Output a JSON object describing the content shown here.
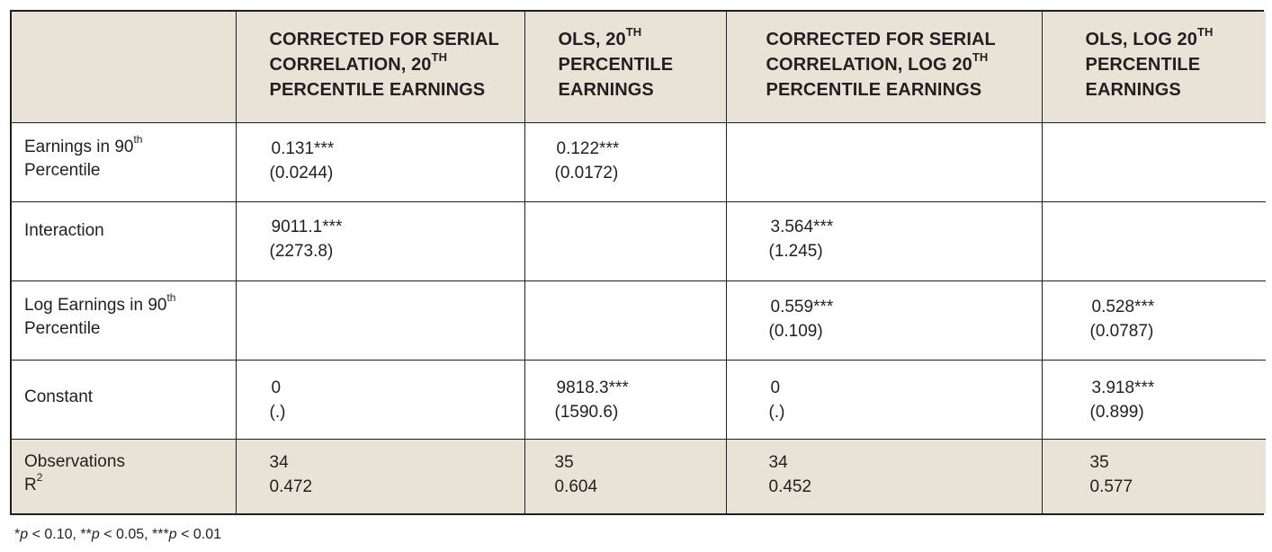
{
  "table": {
    "headers": [
      {
        "text": "",
        "sup": "",
        "after": ""
      },
      {
        "text": "Corrected for Serial Correlation, 20",
        "sup": "th",
        "after": " Percentile Earnings"
      },
      {
        "text": "OLS, 20",
        "sup": "th",
        "after": " Percentile Earnings"
      },
      {
        "text": "Corrected for Serial Correlation, Log 20",
        "sup": "th",
        "after": " Percentile Earnings"
      },
      {
        "text": "OLS, Log 20",
        "sup": "th",
        "after": " Percentile Earnings"
      }
    ],
    "rows": [
      {
        "label_pre": "Earnings in 90",
        "label_sup": "th",
        "label_post": " Percentile",
        "cells": [
          {
            "est": "0.131***",
            "se": "(0.0244)"
          },
          {
            "est": "0.122***",
            "se": "(0.0172)"
          },
          {
            "est": "",
            "se": ""
          },
          {
            "est": "",
            "se": ""
          }
        ]
      },
      {
        "label_pre": "Interaction",
        "label_sup": "",
        "label_post": "",
        "cells": [
          {
            "est": "9011.1***",
            "se": "(2273.8)"
          },
          {
            "est": "",
            "se": ""
          },
          {
            "est": "3.564***",
            "se": "(1.245)"
          },
          {
            "est": "",
            "se": ""
          }
        ]
      },
      {
        "label_pre": "Log Earnings in 90",
        "label_sup": "th",
        "label_post": " Percentile",
        "cells": [
          {
            "est": "",
            "se": ""
          },
          {
            "est": "",
            "se": ""
          },
          {
            "est": "0.559***",
            "se": "(0.109)"
          },
          {
            "est": "0.528***",
            "se": "(0.0787)"
          }
        ]
      },
      {
        "label_pre": "Constant",
        "label_sup": "",
        "label_post": "",
        "cells": [
          {
            "est": "0",
            "se": "(.)"
          },
          {
            "est": "9818.3***",
            "se": "(1590.6)"
          },
          {
            "est": "0",
            "se": "(.)"
          },
          {
            "est": "3.918***",
            "se": "(0.899)"
          }
        ]
      }
    ],
    "footer": {
      "label_obs": "Observations",
      "label_r": "R",
      "label_r_sup": "2",
      "cells": [
        {
          "obs": "34",
          "r2": "0.472"
        },
        {
          "obs": "35",
          "r2": "0.604"
        },
        {
          "obs": "34",
          "r2": "0.452"
        },
        {
          "obs": "35",
          "r2": "0.577"
        }
      ]
    }
  },
  "note": {
    "s1": "*",
    "p1": "p",
    "t1": " < 0.10, ",
    "s2": "**",
    "p2": "p",
    "t2": " < 0.05, ",
    "s3": "***",
    "p3": "p",
    "t3": " < 0.01"
  }
}
